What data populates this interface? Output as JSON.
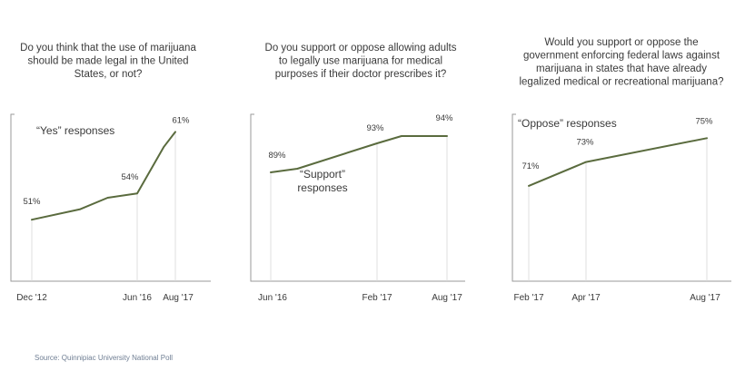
{
  "source_text": "Source:  Quinnipiac University National Poll",
  "line_color": "#5a6b3e",
  "chart_data": [
    {
      "type": "line",
      "title_lines": [
        "Do you think that the use of marijuana",
        "should be made legal in the United",
        "States, or not?"
      ],
      "annotation_lines": [
        "“Yes” responses"
      ],
      "tick_labels": [
        "Dec '12",
        "Jun '16",
        "Aug '17"
      ],
      "series": [
        {
          "points": [
            {
              "x": 0,
              "y": 51,
              "label": "51%"
            },
            {
              "x": 0.46,
              "y": 52.2
            },
            {
              "x": 0.72,
              "y": 53.5
            },
            {
              "x": 1,
              "y": 54,
              "label": "54%"
            },
            {
              "x": 1.7,
              "y": 59.3
            },
            {
              "x": 2,
              "y": 61,
              "label": "61%"
            }
          ]
        }
      ],
      "tick_x": [
        0,
        1,
        2
      ],
      "ylim": [
        44,
        63
      ]
    },
    {
      "type": "line",
      "title_lines": [
        "Do you support or oppose allowing adults",
        "to legally use marijuana for medical",
        "purposes if their doctor prescribes it?"
      ],
      "annotation_lines": [
        "“Support”",
        "responses"
      ],
      "tick_labels": [
        "Jun '16",
        "Feb '17",
        "Aug '17"
      ],
      "series": [
        {
          "points": [
            {
              "x": 0,
              "y": 89,
              "label": "89%"
            },
            {
              "x": 0.25,
              "y": 89.5
            },
            {
              "x": 1,
              "y": 93,
              "label": "93%"
            },
            {
              "x": 1.35,
              "y": 94
            },
            {
              "x": 2,
              "y": 94,
              "label": "94%"
            }
          ]
        }
      ],
      "tick_x": [
        0,
        1,
        2
      ],
      "ylim": [
        74,
        97
      ]
    },
    {
      "type": "line",
      "title_lines": [
        "Would you support or oppose the",
        "government enforcing federal laws against",
        "marijuana in states that have already",
        "legalized medical or recreational marijuana?"
      ],
      "annotation_lines": [
        "“Oppose” responses"
      ],
      "tick_labels": [
        "Feb '17",
        "Apr '17",
        "Aug '17"
      ],
      "series": [
        {
          "points": [
            {
              "x": 0,
              "y": 71,
              "label": "71%"
            },
            {
              "x": 1,
              "y": 73,
              "label": "73%"
            },
            {
              "x": 2,
              "y": 75,
              "label": "75%"
            }
          ]
        }
      ],
      "tick_x": [
        0,
        1,
        2
      ],
      "ylim": [
        63,
        77
      ]
    }
  ]
}
